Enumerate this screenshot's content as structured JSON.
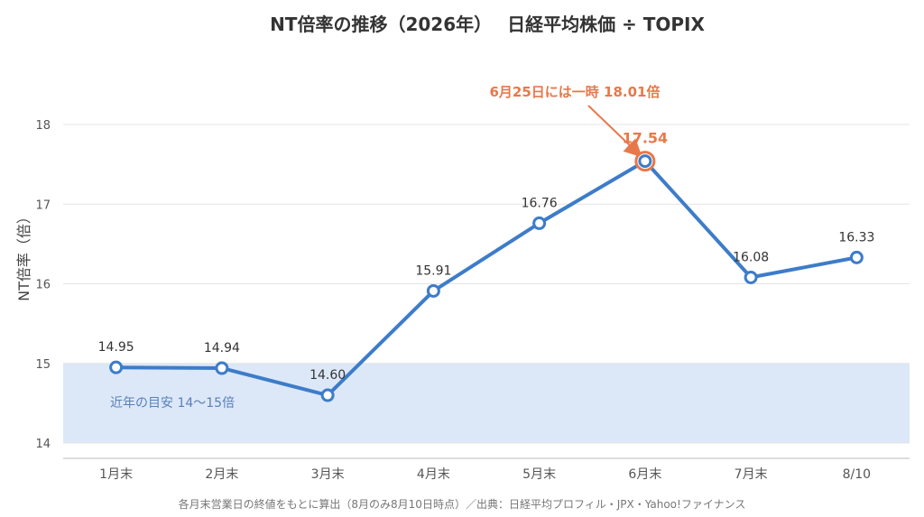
{
  "colors": {
    "series": "#3d7cc9",
    "highlight": "#e8784a",
    "band": "#dce8f8",
    "grid": "#e4e4e4",
    "axis": "#bbbbbb"
  },
  "chart_data": {
    "type": "line",
    "title": "NT倍率の推移（2026年）　 日経平均株価 ÷ TOPIX",
    "ylabel": "NT倍率（倍）",
    "xlabel": "",
    "categories": [
      "1月末",
      "2月末",
      "3月末",
      "4月末",
      "5月末",
      "6月末",
      "7月末",
      "8/10"
    ],
    "values": [
      14.95,
      14.94,
      14.6,
      15.91,
      16.76,
      17.54,
      16.08,
      16.33
    ],
    "data_labels": [
      "14.95",
      "14.94",
      "14.60",
      "15.91",
      "16.76",
      "17.54",
      "16.08",
      "16.33"
    ],
    "ylim": [
      14,
      18.7
    ],
    "yticks": [
      14,
      15,
      16,
      17,
      18
    ],
    "grid": true,
    "highlight_index": 5,
    "band": {
      "from": 14,
      "to": 15,
      "label": "近年の目安 14〜15倍"
    },
    "annotation": {
      "text": "6月25日には一時 18.01倍",
      "target_index": 5
    },
    "footnote": "各月末営業日の終値をもとに算出（8月のみ8月10日時点）／出典：日経平均プロフィル・JPX・Yahoo!ファイナンス"
  }
}
